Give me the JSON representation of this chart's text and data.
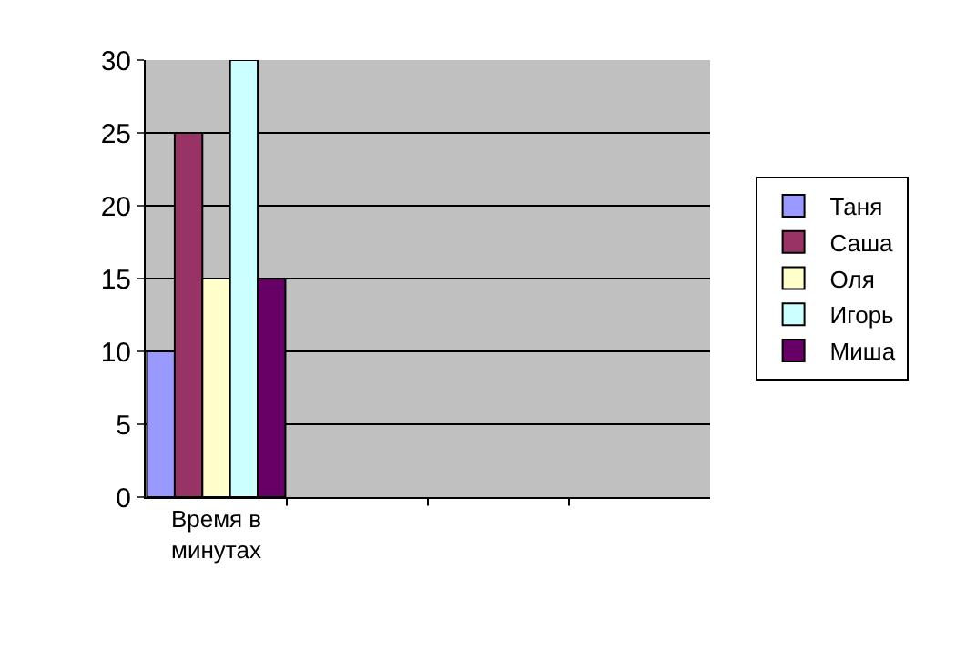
{
  "chart_data": {
    "type": "bar",
    "categories": [
      "Время в минутах",
      null,
      null,
      null
    ],
    "series": [
      {
        "name": "Таня",
        "color": "#9999ff",
        "values": [
          10,
          null,
          null,
          null
        ]
      },
      {
        "name": "Саша",
        "color": "#993366",
        "values": [
          25,
          null,
          null,
          null
        ]
      },
      {
        "name": "Оля",
        "color": "#ffffcc",
        "values": [
          15,
          null,
          null,
          null
        ]
      },
      {
        "name": "Игорь",
        "color": "#ccffff",
        "values": [
          30,
          null,
          null,
          null
        ]
      },
      {
        "name": "Миша",
        "color": "#660066",
        "values": [
          15,
          null,
          null,
          null
        ]
      }
    ],
    "ylim": [
      0,
      30
    ],
    "yticks": [
      0,
      5,
      10,
      15,
      20,
      25,
      30
    ],
    "grid": "y",
    "legend": "right"
  }
}
